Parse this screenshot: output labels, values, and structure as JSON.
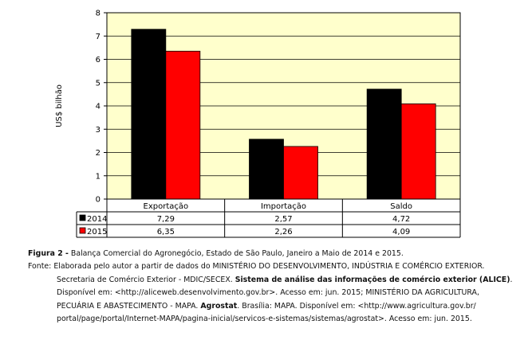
{
  "chart_data": {
    "type": "bar",
    "ylabel": "US$ bilhão",
    "ylim": [
      0,
      8
    ],
    "yticks": [
      "0",
      "1",
      "2",
      "3",
      "4",
      "5",
      "6",
      "7",
      "8"
    ],
    "grid": true,
    "categories": [
      "Exportação",
      "Importação",
      "Saldo"
    ],
    "series": [
      {
        "name": "2014",
        "color": "#000000",
        "values": [
          7.29,
          2.57,
          4.72
        ],
        "labels": [
          "7,29",
          "2,57",
          "4,72"
        ]
      },
      {
        "name": "2015",
        "color": "#ff0000",
        "values": [
          6.35,
          2.26,
          4.09
        ],
        "labels": [
          "6,35",
          "2,26",
          "4,09"
        ]
      }
    ],
    "plot_background": "#ffffcc",
    "legend": "data table below chart"
  },
  "caption": {
    "figure_label": "Figura 2 -",
    "figure_title": " Balança Comercial do Agronegócio, Estado de São Paulo, Janeiro a Maio de 2014 e 2015.",
    "source_prefix": "Fonte: ",
    "line1": "Elaborada pelo autor a partir de dados do MINISTÉRIO DO DESENVOLVIMENTO, INDÚSTRIA E COMÉRCIO EXTERIOR.",
    "line2a": "Secretaria de Comércio Exterior - MDIC/SECEX. ",
    "line2b": "Sistema de análise das informações de comércio exterior (ALICE)",
    "line2c": ".",
    "line3": "Disponível em: <http://aliceweb.desenvolvimento.gov.br>. Acesso em: jun. 2015; MINISTÉRIO DA AGRICULTURA,",
    "line4a": "PECUÁRIA E ABASTECIMENTO - MAPA. ",
    "line4b": "Agrostat",
    "line4c": ". Brasília: MAPA. Disponível em: <http://www.agricultura.gov.br/",
    "line5": "portal/page/portal/Internet-MAPA/pagina-inicial/servicos-e-sistemas/sistemas/agrostat>. Acesso em: jun. 2015."
  }
}
